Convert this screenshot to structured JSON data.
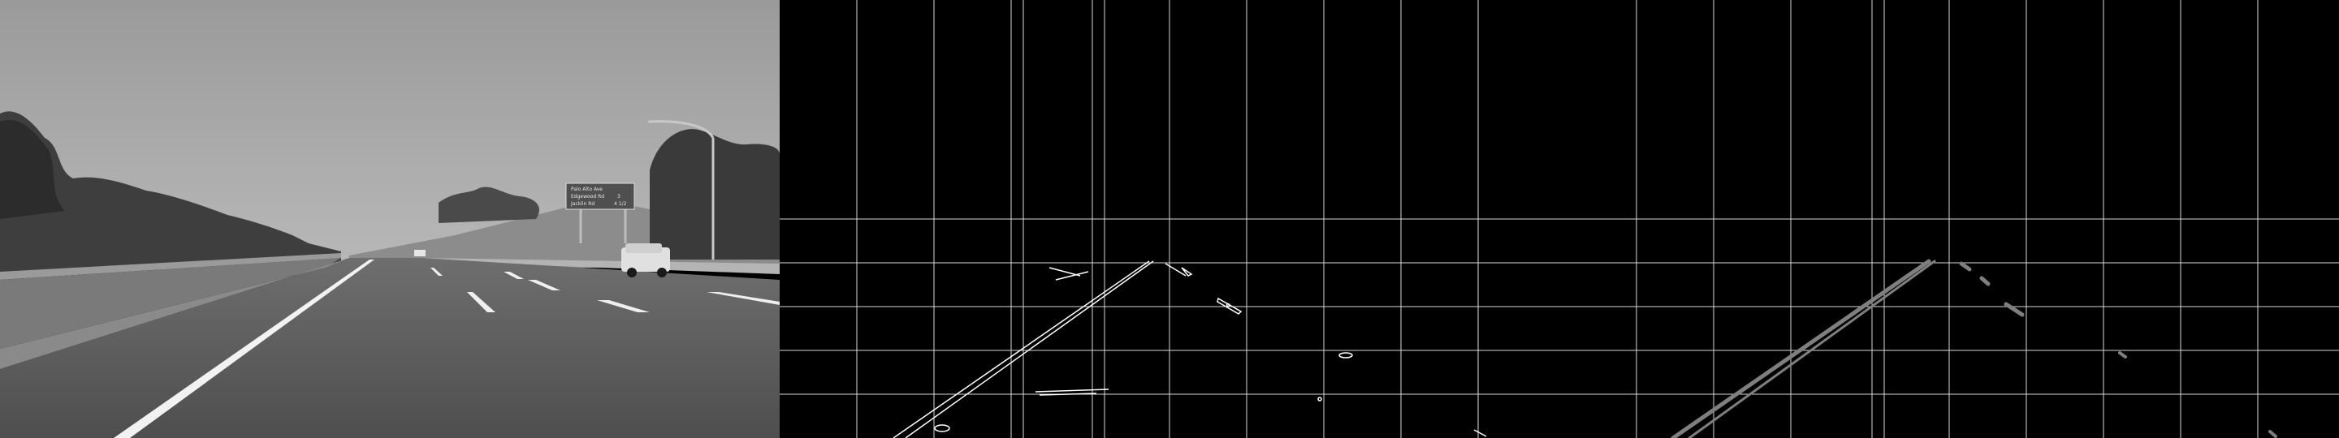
{
  "panels": [
    {
      "id": "grayscale-road",
      "kind": "grayscale photo"
    },
    {
      "id": "canny-edges-grid",
      "kind": "edge map with grid"
    },
    {
      "id": "hough-lines-grid",
      "kind": "hough lines with grid"
    }
  ],
  "sign": {
    "lines": [
      {
        "name": "Palo Alto Ave",
        "dist": ""
      },
      {
        "name": "Edgewood Rd",
        "dist": "3"
      },
      {
        "name": "Jacklin Rd",
        "dist": "4 1/2"
      }
    ]
  },
  "colors": {
    "sky": "#a9a9a9",
    "road": "#5a5a5a",
    "grid": "#d9d9d9",
    "edges": "#ffffff",
    "hough": "#7f7f7f"
  }
}
